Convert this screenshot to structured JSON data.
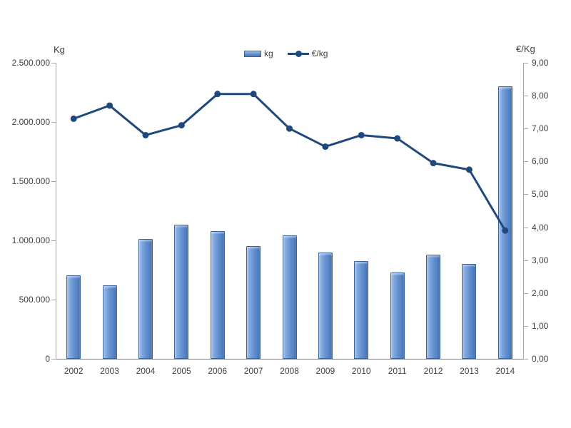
{
  "chart_data": {
    "type": "combo",
    "title": "",
    "categories": [
      "2002",
      "2003",
      "2004",
      "2005",
      "2006",
      "2007",
      "2008",
      "2009",
      "2010",
      "2011",
      "2012",
      "2013",
      "2014"
    ],
    "series": [
      {
        "name": "kg",
        "type": "bar",
        "axis": "left",
        "values": [
          705000,
          620000,
          1010000,
          1130000,
          1080000,
          950000,
          1045000,
          900000,
          825000,
          730000,
          880000,
          800000,
          2300000
        ]
      },
      {
        "name": "€/kg",
        "type": "line",
        "axis": "right",
        "values": [
          7.3,
          7.7,
          6.8,
          7.1,
          8.05,
          8.05,
          7.0,
          6.45,
          6.8,
          6.7,
          5.95,
          5.75,
          3.9
        ]
      }
    ],
    "left_axis": {
      "title": "Kg",
      "min": 0,
      "max": 2500000,
      "ticks": [
        "0",
        "500.000",
        "1.000.000",
        "1.500.000",
        "2.000.000",
        "2.500.000"
      ]
    },
    "right_axis": {
      "title": "€/Kg",
      "min": 0,
      "max": 9,
      "ticks": [
        "0,00",
        "1,00",
        "2,00",
        "3,00",
        "4,00",
        "5,00",
        "6,00",
        "7,00",
        "8,00",
        "9,00"
      ]
    },
    "legend": [
      {
        "label": "kg",
        "marker": "bar"
      },
      {
        "label": "€/kg",
        "marker": "line"
      }
    ],
    "layout": {
      "gridlines": "off",
      "legend_position": "top-center"
    },
    "colors": {
      "bar_fill": "#628fd0",
      "bar_border": "#3d639c",
      "line": "#1f497d",
      "text": "#3f3f3f",
      "axis": "#a6a6a6"
    }
  }
}
